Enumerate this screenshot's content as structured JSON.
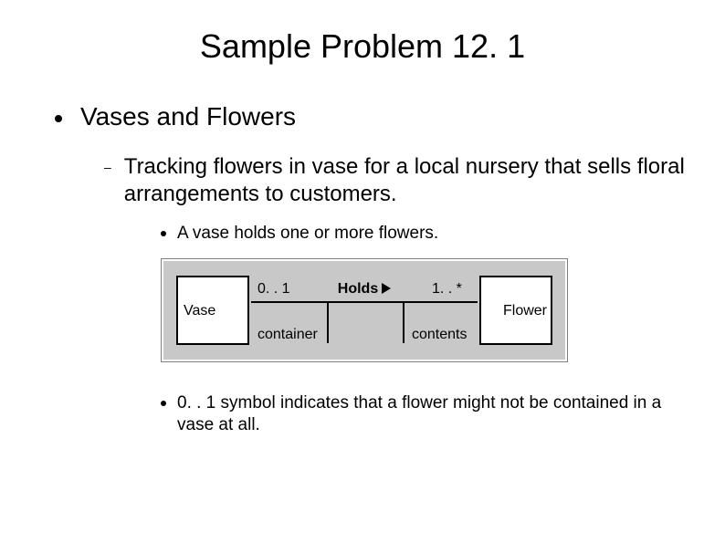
{
  "title": "Sample Problem 12. 1",
  "level1": {
    "text": "Vases and Flowers"
  },
  "level2": {
    "text": "Tracking flowers in vase for a local nursery that sells floral arrangements to customers."
  },
  "level3a": {
    "text": "A vase holds one or more flowers."
  },
  "level3b": {
    "text": "0. . 1 symbol indicates that a flower might not be contained in a vase at all."
  },
  "diagram": {
    "type": "uml-association",
    "background_color": "#c8c8c8",
    "box_fill": "#ffffff",
    "box_border": "#000000",
    "line_color": "#000000",
    "left_class": "Vase",
    "right_class": "Flower",
    "left_multiplicity": "0. . 1",
    "right_multiplicity": "1. . *",
    "assoc_name": "Holds",
    "left_role": "container",
    "right_role": "contents"
  }
}
